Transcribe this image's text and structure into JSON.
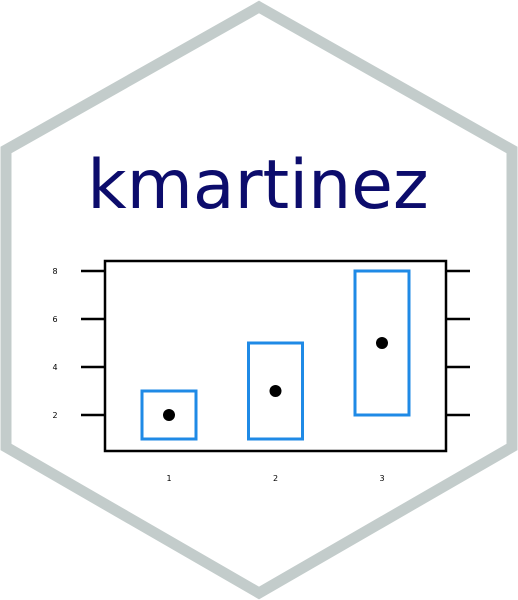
{
  "title": "kmartinez",
  "colors": {
    "hex_border": "#c3cccb",
    "title": "#0c0c6c",
    "box": "#1f8ae6",
    "axis": "#000000",
    "point": "#000000",
    "background": "#ffffff"
  },
  "chart_data": {
    "type": "boxplot",
    "categories": [
      "1",
      "2",
      "3"
    ],
    "series": [
      {
        "low": 1,
        "high": 3,
        "point": 2
      },
      {
        "low": 1,
        "high": 5,
        "point": 3
      },
      {
        "low": 2,
        "high": 8,
        "point": 5
      }
    ],
    "y_ticks": [
      "2",
      "4",
      "6",
      "8"
    ],
    "x_ticks": [
      "1",
      "2",
      "3"
    ],
    "ylim": [
      0,
      8.5
    ],
    "xlim": [
      0.4,
      3.55
    ],
    "grid": false,
    "legend": "none"
  }
}
